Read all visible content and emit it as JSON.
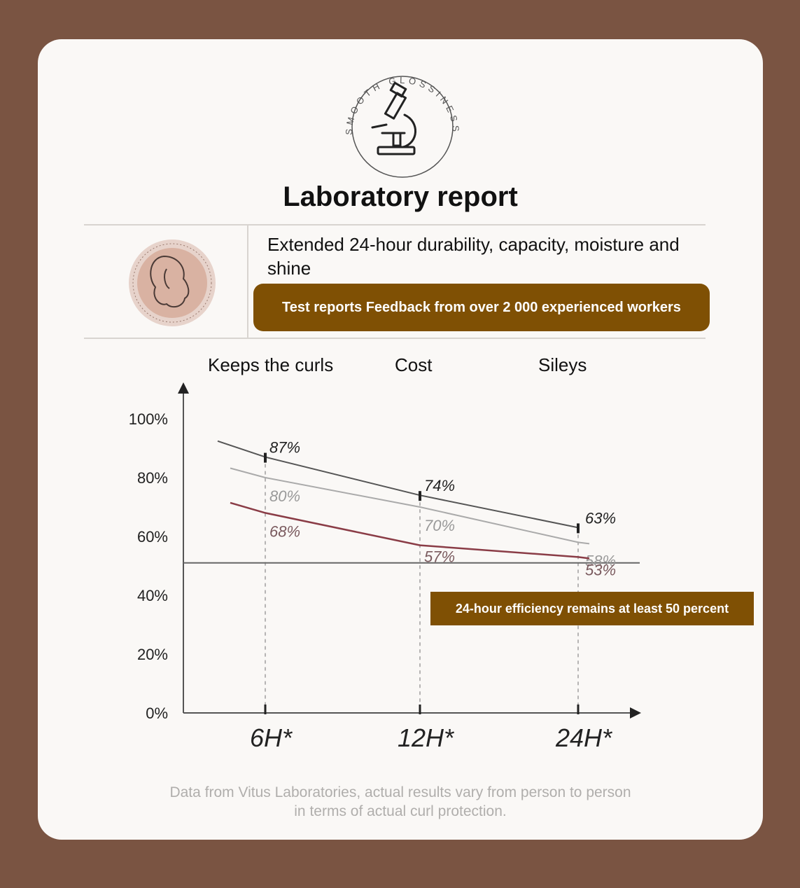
{
  "header": {
    "badge_text": "SMOOTH GLOSSINESS",
    "badge_icon": "microscope-icon",
    "title": "Laboratory report"
  },
  "info": {
    "seal_icon": "woman-silhouette-seal-icon",
    "subtitle": "Extended 24-hour durability, capacity, moisture and shine",
    "pill_text": "Test reports Feedback from over 2 000 experienced workers"
  },
  "columns": [
    "Keeps the curls",
    "Cost",
    "Sileys"
  ],
  "callout": "24-hour efficiency remains at least 50 percent",
  "footnote": {
    "line1": "Data from Vitus Laboratories, actual results vary from person to person",
    "line2": "in terms of actual curl protection."
  },
  "colors": {
    "background": "#7a5442",
    "card": "#faf8f6",
    "accent": "#7f5004",
    "series_dark": "#555555",
    "series_light": "#aaaaaa",
    "series_red": "#8a3c46"
  },
  "chart_data": {
    "type": "line",
    "x": [
      "6H",
      "12H",
      "24H"
    ],
    "x_tick_labels": [
      "6H*",
      "12H*",
      "24H*"
    ],
    "y_ticks": [
      "0%",
      "20%",
      "40%",
      "60%",
      "80%",
      "100%"
    ],
    "ylim": [
      0,
      100
    ],
    "reference_line": 51,
    "series": [
      {
        "values": [
          87,
          74,
          63
        ],
        "labels": [
          "87%",
          "74%",
          "63%"
        ],
        "color": "#555555"
      },
      {
        "values": [
          80,
          70,
          58
        ],
        "labels": [
          "80%",
          "70%",
          "58%"
        ],
        "color": "#aaaaaa"
      },
      {
        "values": [
          68,
          57,
          53
        ],
        "labels": [
          "68%",
          "57%",
          "53%"
        ],
        "color": "#8a3c46"
      }
    ],
    "grid": false
  }
}
